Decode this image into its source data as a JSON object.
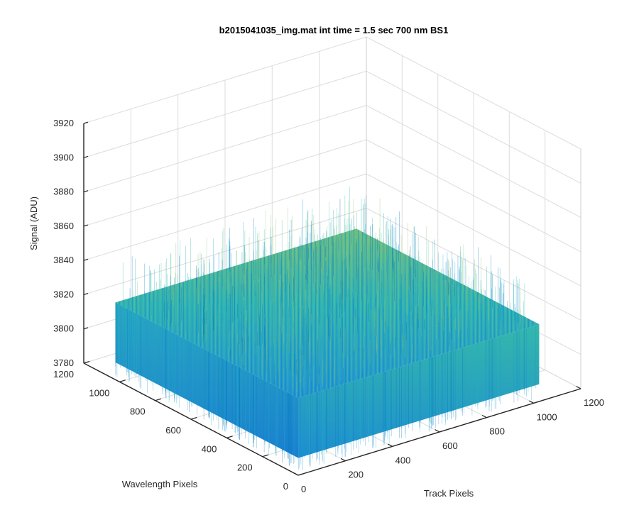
{
  "chart_data": {
    "type": "surface",
    "title": "b2015041035_img.mat int time = 1.5 sec  700 nm BS1",
    "xlabel": "Track Pixels",
    "ylabel": "Wavelength Pixels",
    "zlabel": "Signal (ADU)",
    "xlim": [
      0,
      1200
    ],
    "ylim": [
      0,
      1200
    ],
    "zlim": [
      3780,
      3920
    ],
    "xticks": [
      "0",
      "200",
      "400",
      "600",
      "800",
      "1000",
      "1200"
    ],
    "yticks": [
      "0",
      "200",
      "400",
      "600",
      "800",
      "1000",
      "1200"
    ],
    "zticks": [
      "3780",
      "3800",
      "3820",
      "3840",
      "3860",
      "3880",
      "3900",
      "3920"
    ],
    "grid": true,
    "colormap": "parula",
    "colors": [
      "#0072bd",
      "#1a8fd6",
      "#20b2c4",
      "#3fbfa0",
      "#8cc46c"
    ],
    "data_extent": {
      "x": [
        1,
        1024
      ],
      "y": [
        1,
        1024
      ]
    },
    "signal_mean": 3825,
    "signal_range": [
      3790,
      3880
    ]
  }
}
